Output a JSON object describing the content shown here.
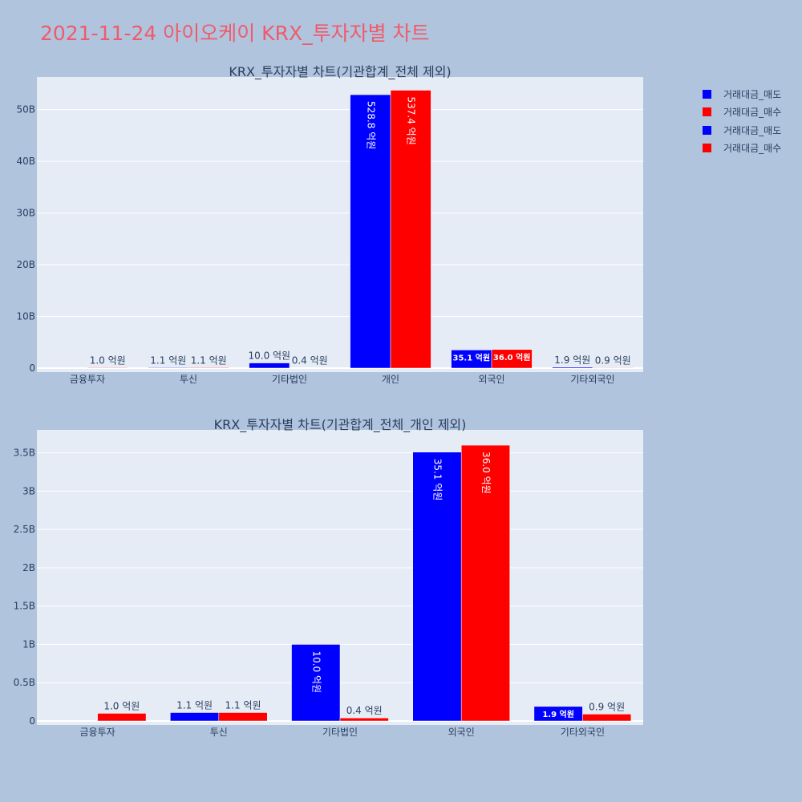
{
  "page": {
    "title": "2021-11-24 아이오케이 KRX_투자자별 차트",
    "title_color": "#ef5b6b",
    "background": "#b0c4de",
    "plot_background": "#e5ecf6"
  },
  "legend": {
    "items": [
      {
        "label": "거래대금_매도",
        "color": "#0000ff"
      },
      {
        "label": "거래대금_매수",
        "color": "#ff0000"
      },
      {
        "label": "거래대금_매도",
        "color": "#0000ff"
      },
      {
        "label": "거래대금_매수",
        "color": "#ff0000"
      }
    ]
  },
  "chart_data": [
    {
      "type": "bar",
      "title": "KRX_투자자별 차트(기관합계_전체 제외)",
      "categories": [
        "금융투자",
        "투신",
        "기타법인",
        "개인",
        "외국인",
        "기타외국인"
      ],
      "ylim": [
        0,
        56.3
      ],
      "yticks": [
        0,
        10,
        20,
        30,
        40,
        50
      ],
      "ytick_labels": [
        "0",
        "10B",
        "20B",
        "30B",
        "40B",
        "50B"
      ],
      "series": [
        {
          "name": "거래대금_매도",
          "color": "#0000ff",
          "values": [
            0,
            0.11,
            1.0,
            52.88,
            3.51,
            0.19
          ],
          "labels": [
            "",
            "1.1 억원",
            "10.0 억원",
            "528.8 억원",
            "35.1 억원",
            "1.9 억원"
          ]
        },
        {
          "name": "거래대금_매수",
          "color": "#ff0000",
          "values": [
            0.1,
            0.11,
            0.04,
            53.74,
            3.6,
            0.09
          ],
          "labels": [
            "1.0 억원",
            "1.1 억원",
            "0.4 억원",
            "537.4 억원",
            "36.0 억원",
            "0.9 억원"
          ]
        }
      ]
    },
    {
      "type": "bar",
      "title": "KRX_투자자별 차트(기관합계_전체_개인 제외)",
      "categories": [
        "금융투자",
        "투신",
        "기타법인",
        "외국인",
        "기타외국인"
      ],
      "ylim": [
        0,
        3.8
      ],
      "yticks": [
        0,
        0.5,
        1,
        1.5,
        2,
        2.5,
        3,
        3.5
      ],
      "ytick_labels": [
        "0",
        "0.5B",
        "1B",
        "1.5B",
        "2B",
        "2.5B",
        "3B",
        "3.5B"
      ],
      "series": [
        {
          "name": "거래대금_매도",
          "color": "#0000ff",
          "values": [
            0,
            0.11,
            1.0,
            3.51,
            0.19
          ],
          "labels": [
            "",
            "1.1 억원",
            "10.0 억원",
            "35.1 억원",
            "1.9 억원"
          ]
        },
        {
          "name": "거래대금_매수",
          "color": "#ff0000",
          "values": [
            0.1,
            0.11,
            0.04,
            3.6,
            0.09
          ],
          "labels": [
            "1.0 억원",
            "1.1 억원",
            "0.4 억원",
            "36.0 억원",
            "0.9 억원"
          ]
        }
      ]
    }
  ]
}
